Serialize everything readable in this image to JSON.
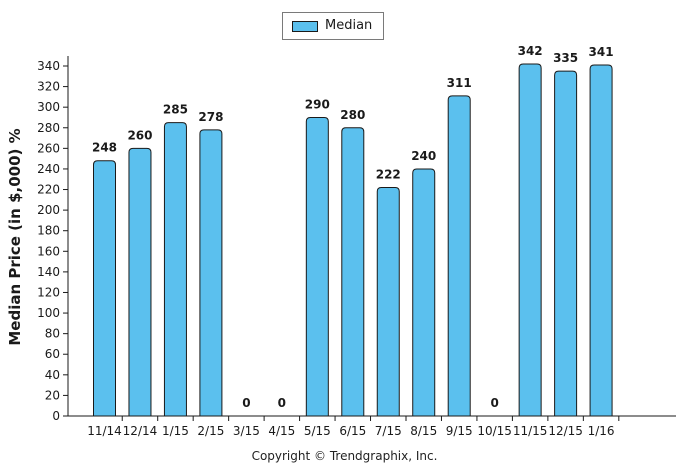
{
  "chart_data": {
    "type": "bar",
    "title": "",
    "xlabel": "",
    "ylabel": "Median Price (in $,000) %",
    "categories": [
      "11/14",
      "12/14",
      "1/15",
      "2/15",
      "3/15",
      "4/15",
      "5/15",
      "6/15",
      "7/15",
      "8/15",
      "9/15",
      "10/15",
      "11/15",
      "12/15",
      "1/16"
    ],
    "series": [
      {
        "name": "Median",
        "values": [
          248,
          260,
          285,
          278,
          0,
          0,
          290,
          280,
          222,
          240,
          311,
          0,
          342,
          335,
          341
        ]
      }
    ],
    "ylim": [
      0,
      340
    ],
    "yticks": [
      0,
      20,
      40,
      60,
      80,
      100,
      120,
      140,
      160,
      180,
      200,
      220,
      240,
      260,
      280,
      300,
      320,
      340
    ],
    "grid": false,
    "legend": "top-center",
    "colors": {
      "bar": "#5bc0ee",
      "bar_edge": "#1a1a1a"
    }
  },
  "footer": {
    "copyright": "Copyright © Trendgraphix, Inc."
  }
}
